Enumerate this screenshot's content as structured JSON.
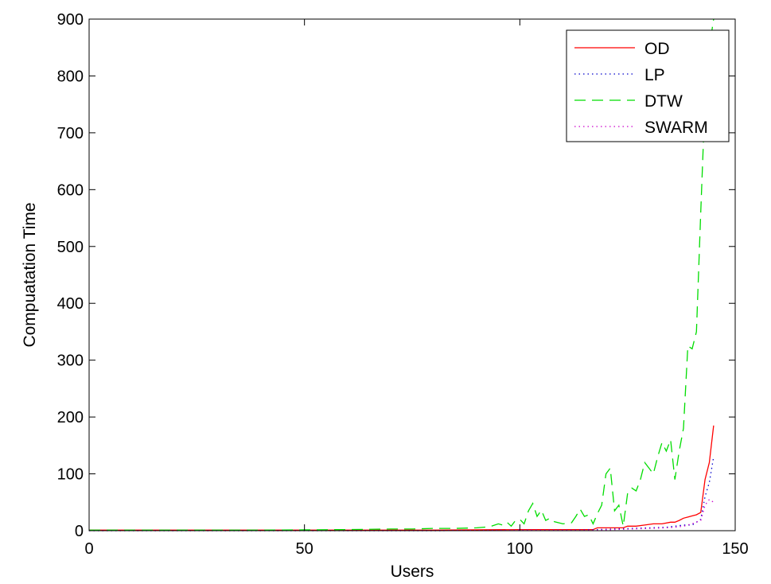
{
  "chart_data": {
    "type": "line",
    "xlabel": "Users",
    "ylabel": "Compuatation Time",
    "xlim": [
      0,
      150
    ],
    "ylim": [
      0,
      900
    ],
    "xticks": [
      "0",
      "50",
      "100",
      "150"
    ],
    "yticks": [
      "0",
      "100",
      "200",
      "300",
      "400",
      "500",
      "600",
      "700",
      "800",
      "900"
    ],
    "grid": false,
    "legend_position": "top-right",
    "series": [
      {
        "name": "OD",
        "color": "#ff0000",
        "style": "solid",
        "x": [
          0,
          20,
          40,
          60,
          80,
          100,
          110,
          117,
          118,
          122,
          124,
          125,
          127,
          129,
          131,
          133,
          135,
          136,
          137,
          138,
          139,
          140,
          141,
          142,
          143,
          144,
          145
        ],
        "y": [
          1,
          1,
          1,
          1,
          1,
          2,
          2,
          2,
          5,
          5,
          5,
          8,
          8,
          10,
          12,
          12,
          15,
          15,
          18,
          22,
          24,
          26,
          28,
          32,
          90,
          120,
          185
        ]
      },
      {
        "name": "LP",
        "color": "#0000cc",
        "style": "dotted",
        "x": [
          0,
          20,
          40,
          60,
          80,
          100,
          110,
          118,
          122,
          126,
          130,
          134,
          136,
          138,
          140,
          142,
          143,
          144,
          145
        ],
        "y": [
          0,
          0,
          0,
          0,
          0,
          1,
          1,
          2,
          3,
          4,
          5,
          6,
          8,
          10,
          10,
          20,
          60,
          85,
          130
        ]
      },
      {
        "name": "DTW",
        "color": "#00dd00",
        "style": "dashed",
        "x": [
          0,
          20,
          40,
          60,
          70,
          75,
          80,
          85,
          90,
          93,
          95,
          96,
          97,
          98,
          99,
          100,
          101,
          102,
          103,
          104,
          105,
          106,
          107,
          108,
          110,
          112,
          113,
          114,
          115,
          116,
          117,
          118,
          119,
          120,
          121,
          122,
          123,
          124,
          125,
          126,
          127,
          128,
          129,
          130,
          131,
          132,
          133,
          134,
          135,
          136,
          137,
          138,
          139,
          140,
          141,
          142,
          143,
          144,
          145
        ],
        "y": [
          1,
          1,
          1,
          2,
          3,
          3,
          4,
          4,
          5,
          7,
          12,
          10,
          15,
          8,
          18,
          20,
          12,
          35,
          48,
          25,
          36,
          18,
          22,
          16,
          12,
          14,
          25,
          38,
          25,
          28,
          12,
          30,
          45,
          100,
          110,
          35,
          45,
          8,
          65,
          75,
          70,
          90,
          120,
          110,
          100,
          130,
          155,
          140,
          160,
          90,
          140,
          180,
          325,
          320,
          350,
          560,
          760,
          850,
          900
        ]
      },
      {
        "name": "SWARM",
        "color": "#cc00cc",
        "style": "dotted",
        "x": [
          0,
          20,
          40,
          60,
          80,
          100,
          110,
          118,
          122,
          126,
          130,
          134,
          136,
          138,
          140,
          142,
          143,
          144,
          145
        ],
        "y": [
          0,
          0,
          0,
          0,
          0,
          1,
          1,
          1,
          2,
          3,
          4,
          5,
          6,
          8,
          12,
          18,
          45,
          55,
          50
        ]
      }
    ]
  }
}
